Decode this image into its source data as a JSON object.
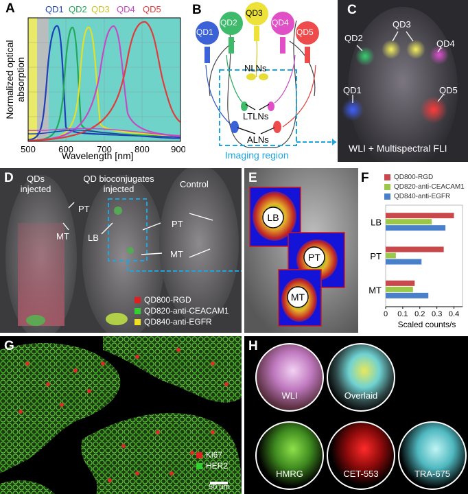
{
  "panel_labels": {
    "A": "A",
    "B": "B",
    "C": "C",
    "D": "D",
    "E": "E",
    "F": "F",
    "G": "G",
    "H": "H"
  },
  "panelA": {
    "ylabel": "Normalized optical absorption",
    "xlabel": "Wavelength [nm]",
    "xticks": [
      "500",
      "600",
      "700",
      "800",
      "900"
    ],
    "qd_labels": [
      "QD1",
      "QD2",
      "QD3",
      "QD4",
      "QD5"
    ],
    "colors": [
      "#1f3fb6",
      "#22a85a",
      "#e3e02a",
      "#c44bc4",
      "#e23b3b"
    ]
  },
  "panelB": {
    "qd_labels": [
      "QD1",
      "QD2",
      "QD3",
      "QD4",
      "QD5"
    ],
    "nodes": [
      "NLNs",
      "LTLNs",
      "ALNs"
    ],
    "region": "Imaging region"
  },
  "panelC": {
    "labels": [
      "QD1",
      "QD2",
      "QD3",
      "QD4",
      "QD5"
    ],
    "caption": "WLI + Multispectral FLI"
  },
  "panelD": {
    "group1": "QDs injected",
    "group2": "QD bioconjugates injected",
    "group3": "Control",
    "PT": "PT",
    "MT": "MT",
    "LB": "LB",
    "legend": [
      "QD800-RGD",
      "QD820-anti-CEACAM1",
      "QD840-anti-EGFR"
    ],
    "legend_colors": [
      "#e02020",
      "#30d030",
      "#f0e020"
    ]
  },
  "panelE": {
    "regions": [
      "LB",
      "PT",
      "MT"
    ]
  },
  "chart_data": {
    "type": "bar",
    "orientation": "horizontal",
    "categories": [
      "LB",
      "PT",
      "MT"
    ],
    "series": [
      {
        "name": "QD800-RGD",
        "values": [
          0.4,
          0.34,
          0.17
        ]
      },
      {
        "name": "QD820-anti-CEACAM1",
        "values": [
          0.27,
          0.06,
          0.16
        ]
      },
      {
        "name": "QD840-anti-EGFR",
        "values": [
          0.35,
          0.21,
          0.25
        ]
      }
    ],
    "series_colors": [
      "#c9484b",
      "#9bc84a",
      "#4a7fc9"
    ],
    "xlabel": "Scaled counts/s",
    "xticks": [
      "0",
      "0.1",
      "0.2",
      "0.3",
      "0.4"
    ],
    "xlim": [
      0,
      0.45
    ],
    "legend_position": "top"
  },
  "panelG": {
    "legend": [
      "Ki67",
      "HER2"
    ],
    "legend_colors": [
      "#e02020",
      "#30d030"
    ],
    "scale": "50 μm"
  },
  "panelH": {
    "labels": [
      "WLI",
      "Overlaid",
      "HMRG",
      "CET-553",
      "TRA-675"
    ]
  }
}
